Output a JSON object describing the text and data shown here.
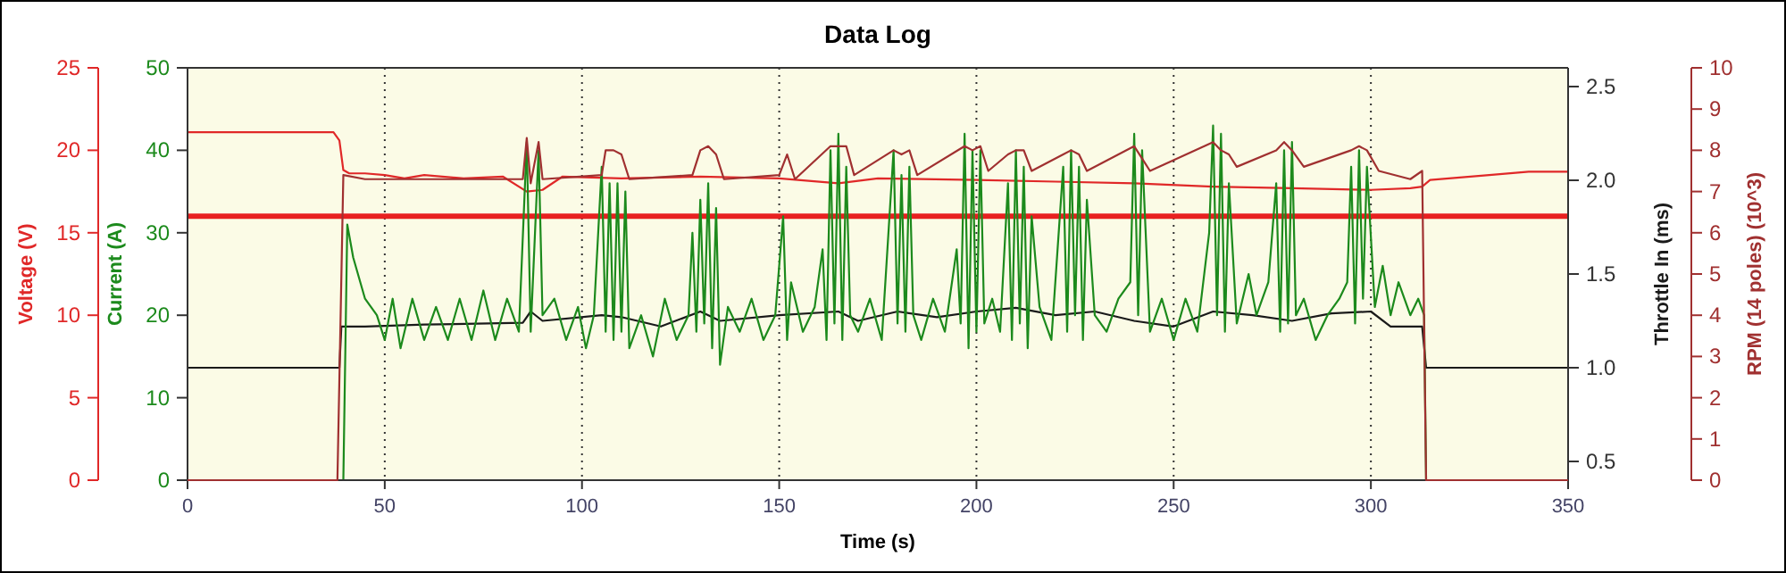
{
  "chart_data": [
    {
      "type": "line",
      "title": "Data Log",
      "xlabel": "Time (s)",
      "ylabel": "Voltage (V)",
      "y2label": "Current (A)",
      "y3label": "Throttle In (ms)",
      "xlim": [
        0,
        350
      ],
      "xticks": [
        0,
        50,
        100,
        150,
        200,
        250,
        300,
        350
      ],
      "ylim": [
        0,
        25
      ],
      "yticks": [
        0,
        5,
        10,
        15,
        20,
        25
      ],
      "y2lim": [
        0,
        50
      ],
      "y2ticks": [
        0,
        10,
        20,
        30,
        40,
        50
      ],
      "y3lim": [
        0.4,
        2.6
      ],
      "y3ticks": [
        {
          "value": 0.5,
          "label": "0.5"
        },
        {
          "value": 1,
          "label": "1.0"
        },
        {
          "value": 1.5,
          "label": "1.5"
        },
        {
          "value": 2,
          "label": "2.0"
        },
        {
          "value": 2.5,
          "label": "2.5"
        }
      ],
      "grid": "x",
      "ref_lines": [
        {
          "axis": "y",
          "value": 16,
          "color": "#e82020"
        }
      ],
      "series": [
        {
          "axis": "y",
          "color": "#e02828",
          "x": [
            0,
            37,
            38.5,
            39.5,
            41,
            45,
            50,
            55,
            60,
            70,
            80,
            86,
            90,
            95,
            110,
            130,
            150,
            165,
            175,
            200,
            220,
            240,
            260,
            280,
            300,
            310,
            313,
            315,
            330,
            340,
            350
          ],
          "values": [
            21.1,
            21.1,
            20.6,
            18.8,
            18.6,
            18.6,
            18.5,
            18.3,
            18.5,
            18.3,
            18.4,
            17.5,
            17.6,
            18.4,
            18.3,
            18.4,
            18.3,
            18,
            18.3,
            18.2,
            18.1,
            18,
            17.8,
            17.7,
            17.6,
            17.7,
            17.8,
            18.2,
            18.5,
            18.7,
            18.7
          ]
        },
        {
          "axis": "y3",
          "color": "#1a1a1a",
          "x": [
            0,
            38.5,
            39,
            45,
            60,
            85,
            87,
            90,
            105,
            110,
            120,
            130,
            135,
            150,
            165,
            170,
            180,
            190,
            200,
            210,
            220,
            230,
            240,
            250,
            260,
            270,
            280,
            290,
            300,
            305,
            313,
            314,
            350
          ],
          "values": [
            1,
            1,
            1.22,
            1.22,
            1.23,
            1.24,
            1.3,
            1.25,
            1.28,
            1.27,
            1.22,
            1.3,
            1.25,
            1.28,
            1.3,
            1.25,
            1.3,
            1.27,
            1.3,
            1.32,
            1.28,
            1.3,
            1.25,
            1.22,
            1.3,
            1.28,
            1.25,
            1.29,
            1.3,
            1.22,
            1.22,
            1,
            1
          ]
        },
        {
          "axis": "y2",
          "color": "#1c8a1c",
          "x": [
            0,
            39.5,
            40.5,
            42,
            45,
            48,
            50,
            52,
            54,
            57,
            60,
            63,
            66,
            69,
            72,
            75,
            78,
            81,
            84,
            86,
            87,
            89,
            90,
            93,
            96,
            99,
            101,
            103,
            105,
            106,
            107,
            108,
            109,
            110,
            111,
            112,
            115,
            118,
            121,
            124,
            127,
            128,
            129,
            130,
            131,
            132,
            133,
            134,
            135,
            137,
            140,
            143,
            146,
            149,
            151,
            152,
            153,
            156,
            159,
            161,
            162,
            163,
            164,
            165,
            166,
            167,
            168,
            170,
            173,
            176,
            179,
            180,
            181,
            182,
            183,
            184,
            186,
            189,
            192,
            195,
            196,
            197,
            198,
            199,
            200,
            201,
            202,
            204,
            206,
            208,
            209,
            210,
            211,
            212,
            213,
            214,
            216,
            219,
            222,
            223,
            224,
            225,
            226,
            227,
            228,
            230,
            233,
            236,
            239,
            240,
            241,
            242,
            244,
            247,
            250,
            253,
            256,
            259,
            260,
            261,
            262,
            263,
            264,
            266,
            269,
            271,
            274,
            276,
            277,
            278,
            279,
            280,
            281,
            283,
            286,
            289,
            292,
            294,
            295,
            296,
            297,
            298,
            299,
            301,
            303,
            305,
            307,
            310,
            312,
            313.5,
            314,
            350
          ],
          "values": [
            0,
            0,
            31,
            27,
            22,
            20,
            17,
            22,
            16,
            22,
            17,
            21,
            17,
            22,
            17,
            23,
            17,
            22,
            18,
            41,
            18,
            40,
            20,
            22,
            17,
            21,
            16,
            20,
            38,
            18,
            36,
            17,
            36,
            18,
            35,
            16,
            20,
            15,
            22,
            17,
            20,
            30,
            18,
            34,
            19,
            36,
            16,
            33,
            14,
            21,
            18,
            22,
            17,
            20,
            32,
            17,
            24,
            18,
            21,
            28,
            17,
            40,
            19,
            42,
            17,
            38,
            20,
            18,
            22,
            17,
            40,
            19,
            37,
            18,
            38,
            20,
            17,
            22,
            18,
            28,
            19,
            42,
            16,
            40,
            18,
            40,
            19,
            22,
            18,
            36,
            17,
            40,
            19,
            38,
            16,
            32,
            21,
            17,
            38,
            18,
            40,
            20,
            38,
            17,
            34,
            20,
            18,
            22,
            24,
            42,
            20,
            40,
            18,
            22,
            17,
            22,
            18,
            30,
            43,
            20,
            42,
            18,
            36,
            19,
            25,
            20,
            24,
            36,
            18,
            40,
            19,
            41,
            20,
            22,
            17,
            20,
            22,
            24,
            38,
            19,
            40,
            22,
            38,
            21,
            26,
            20,
            24,
            20,
            22,
            20,
            0,
            0
          ]
        }
      ]
    },
    {
      "type": "line",
      "ylabel": "RPM (14 poles) (10^3)",
      "xlim": [
        0,
        350
      ],
      "ylim": [
        0,
        10
      ],
      "yticks": [
        0,
        1,
        2,
        3,
        4,
        5,
        6,
        7,
        8,
        9,
        10
      ],
      "tick_labels": "y",
      "series": [
        {
          "color": "#a03030",
          "x": [
            0,
            38,
            39.5,
            45,
            60,
            85,
            86,
            87,
            89,
            90,
            105,
            106,
            108,
            110,
            112,
            128,
            130,
            132,
            134,
            136,
            150,
            152,
            154,
            163,
            165,
            167,
            169,
            179,
            181,
            183,
            185,
            197,
            199,
            201,
            203,
            208,
            210,
            212,
            214,
            222,
            224,
            226,
            228,
            240,
            242,
            244,
            260,
            262,
            264,
            266,
            276,
            278,
            280,
            283,
            295,
            297,
            299,
            302,
            310,
            313,
            314,
            350
          ],
          "values": [
            0,
            0,
            7.4,
            7.3,
            7.3,
            7.3,
            8.3,
            7.2,
            8.2,
            7.3,
            7.4,
            8,
            8,
            7.9,
            7.3,
            7.4,
            8,
            8.1,
            7.9,
            7.3,
            7.4,
            7.9,
            7.3,
            8.1,
            8.1,
            8.1,
            7.4,
            8,
            7.9,
            8,
            7.4,
            8.1,
            8,
            8.1,
            7.5,
            7.9,
            8,
            8,
            7.5,
            7.9,
            8,
            7.9,
            7.5,
            8.1,
            7.8,
            7.5,
            8.2,
            8,
            7.9,
            7.6,
            8,
            8.2,
            8,
            7.6,
            8,
            8.1,
            8,
            7.5,
            7.3,
            7.5,
            0,
            0
          ]
        }
      ]
    }
  ]
}
